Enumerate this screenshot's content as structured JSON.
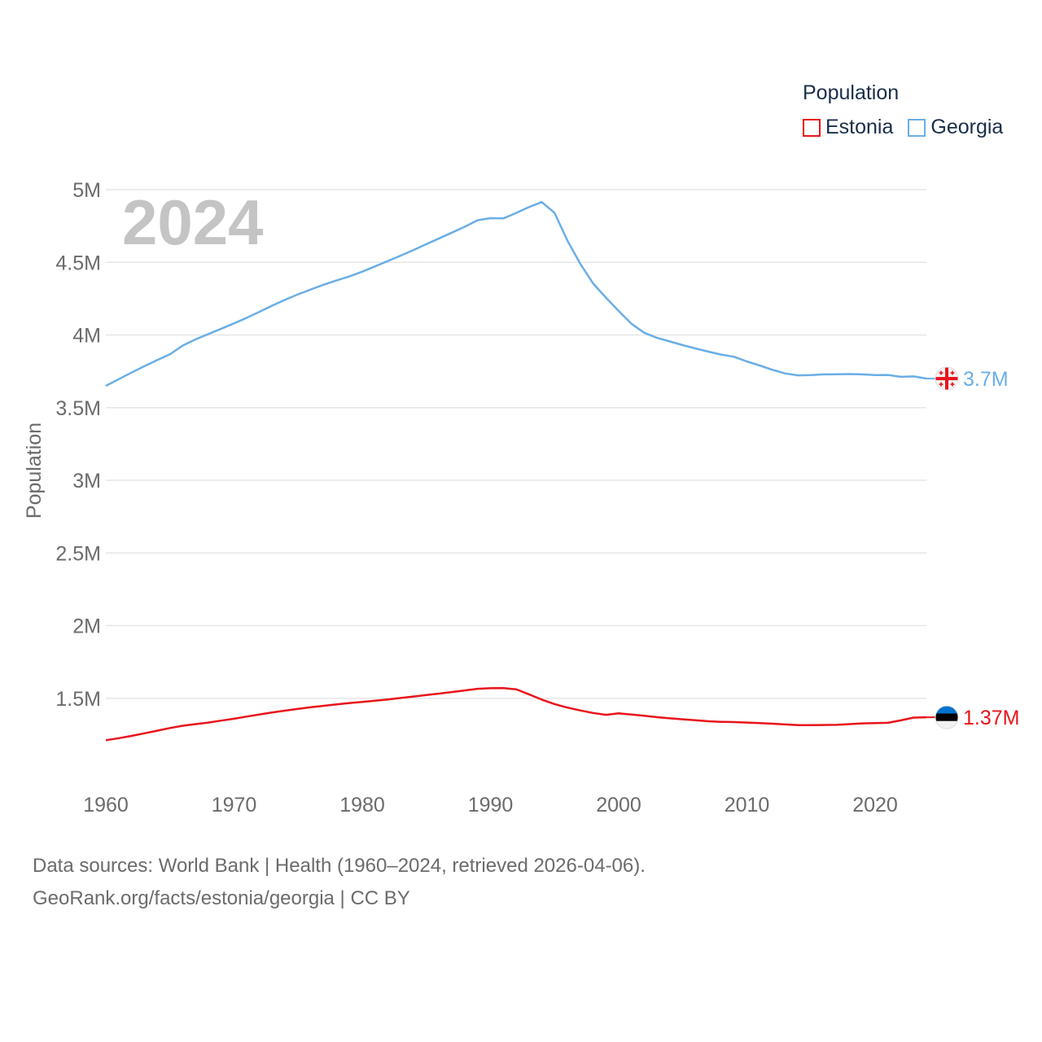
{
  "colors": {
    "estonia": "#e8141b",
    "georgia": "#6aaee6",
    "grid": "#e6e6e6",
    "axis_text": "#6b6b6b",
    "year_watermark": "#c4c4c4"
  },
  "legend": {
    "title": "Population",
    "items": [
      {
        "label": "Estonia",
        "icon": "square-outline-icon"
      },
      {
        "label": "Georgia",
        "icon": "square-outline-icon"
      }
    ]
  },
  "footer": {
    "line1": "Data sources: World Bank | Health (1960–2024, retrieved 2026-04-06).",
    "line2": "GeoRank.org/facts/estonia/georgia | CC BY"
  },
  "chart_data": {
    "type": "line",
    "year_watermark": "2024",
    "ylabel": "Population",
    "xlim": [
      1960,
      2024
    ],
    "ylim": [
      1000000,
      5000000
    ],
    "y_ticks": [
      {
        "value": 1500000,
        "label": "1.5M"
      },
      {
        "value": 2000000,
        "label": "2M"
      },
      {
        "value": 2500000,
        "label": "2.5M"
      },
      {
        "value": 3000000,
        "label": "3M"
      },
      {
        "value": 3500000,
        "label": "3.5M"
      },
      {
        "value": 4000000,
        "label": "4M"
      },
      {
        "value": 4500000,
        "label": "4.5M"
      },
      {
        "value": 5000000,
        "label": "5M"
      }
    ],
    "x_ticks": [
      {
        "value": 1960,
        "label": "1960"
      },
      {
        "value": 1970,
        "label": "1970"
      },
      {
        "value": 1980,
        "label": "1980"
      },
      {
        "value": 1990,
        "label": "1990"
      },
      {
        "value": 2000,
        "label": "2000"
      },
      {
        "value": 2010,
        "label": "2010"
      },
      {
        "value": 2020,
        "label": "2020"
      }
    ],
    "x": [
      1960,
      1961,
      1962,
      1963,
      1964,
      1965,
      1966,
      1967,
      1968,
      1969,
      1970,
      1971,
      1972,
      1973,
      1974,
      1975,
      1976,
      1977,
      1978,
      1979,
      1980,
      1981,
      1982,
      1983,
      1984,
      1985,
      1986,
      1987,
      1988,
      1989,
      1990,
      1991,
      1992,
      1993,
      1994,
      1995,
      1996,
      1997,
      1998,
      1999,
      2000,
      2001,
      2002,
      2003,
      2004,
      2005,
      2006,
      2007,
      2008,
      2009,
      2010,
      2011,
      2012,
      2013,
      2014,
      2015,
      2016,
      2017,
      2018,
      2019,
      2020,
      2021,
      2022,
      2023,
      2024
    ],
    "series": [
      {
        "name": "Georgia",
        "key": "georgia",
        "end_label": "3.7M",
        "flag_icon": "georgia-flag-icon",
        "values": [
          3650000,
          3696000,
          3741000,
          3785000,
          3827000,
          3868000,
          3927000,
          3970000,
          4007000,
          4043000,
          4080000,
          4119000,
          4160000,
          4203000,
          4243000,
          4280000,
          4314000,
          4346000,
          4376000,
          4403000,
          4436000,
          4472000,
          4509000,
          4546000,
          4585000,
          4625000,
          4665000,
          4705000,
          4745000,
          4790000,
          4804000,
          4802000,
          4840000,
          4880000,
          4915000,
          4840000,
          4650000,
          4490000,
          4355000,
          4257000,
          4165000,
          4077000,
          4015000,
          3980000,
          3955000,
          3930000,
          3907000,
          3885000,
          3865000,
          3850000,
          3818000,
          3790000,
          3760000,
          3735000,
          3722000,
          3724000,
          3729000,
          3730000,
          3731000,
          3729000,
          3724000,
          3725000,
          3712000,
          3715000,
          3700000
        ]
      },
      {
        "name": "Estonia",
        "key": "estonia",
        "end_label": "1.37M",
        "flag_icon": "estonia-flag-icon",
        "values": [
          1211000,
          1225000,
          1241000,
          1259000,
          1277000,
          1295000,
          1311000,
          1322000,
          1333000,
          1346000,
          1359000,
          1374000,
          1389000,
          1403000,
          1415000,
          1427000,
          1438000,
          1448000,
          1458000,
          1467000,
          1475000,
          1483000,
          1492000,
          1502000,
          1512000,
          1522000,
          1532000,
          1543000,
          1554000,
          1565000,
          1569000,
          1570000,
          1562000,
          1527000,
          1491000,
          1460000,
          1436000,
          1416000,
          1399000,
          1386000,
          1396000,
          1388000,
          1379000,
          1370000,
          1362000,
          1355000,
          1349000,
          1342000,
          1338000,
          1336000,
          1333000,
          1329000,
          1325000,
          1320000,
          1315000,
          1315000,
          1316000,
          1317000,
          1322000,
          1327000,
          1329000,
          1331000,
          1348000,
          1367000,
          1369000
        ]
      }
    ]
  }
}
